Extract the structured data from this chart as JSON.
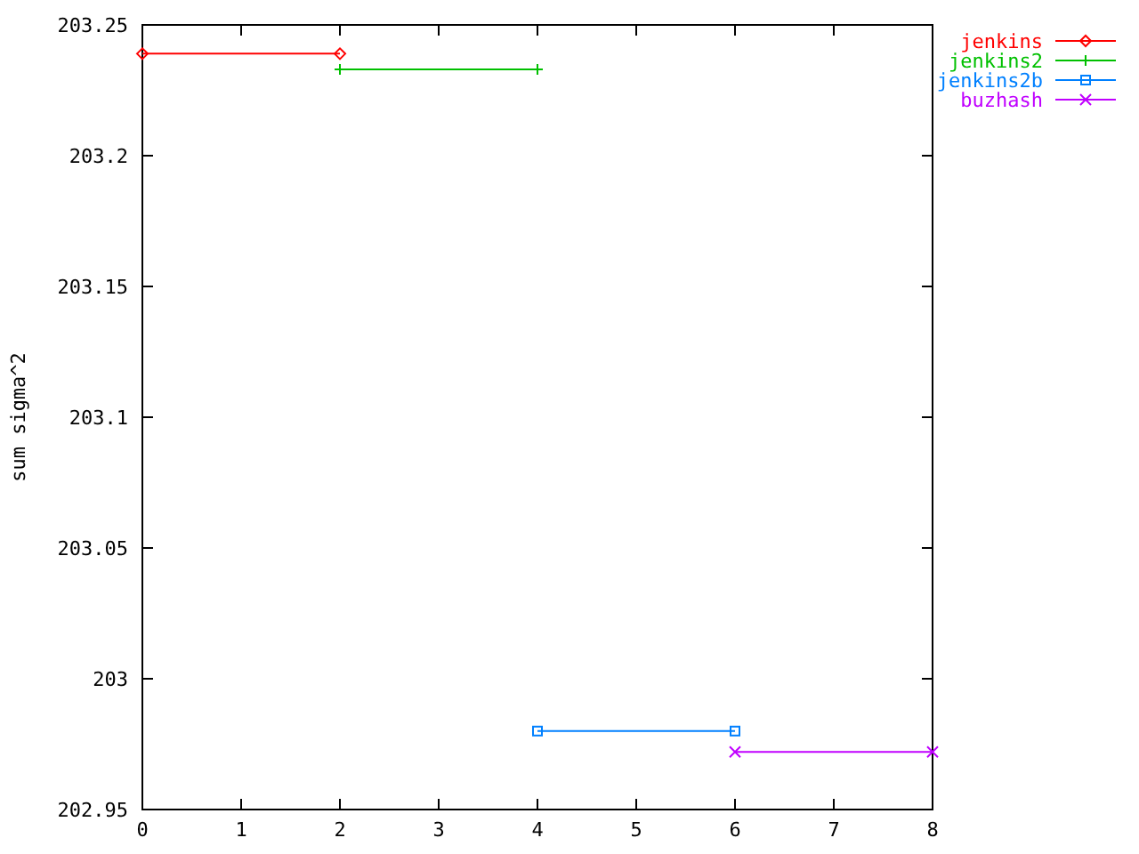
{
  "chart_data": {
    "type": "line",
    "ylabel": "sum sigma^2",
    "series": [
      {
        "name": "jenkins",
        "color": "#ff0000",
        "x": [
          0,
          2
        ],
        "values": [
          203.239,
          203.239
        ],
        "marker": "diamond"
      },
      {
        "name": "jenkins2",
        "color": "#00c000",
        "x": [
          2,
          4
        ],
        "values": [
          203.233,
          203.233
        ],
        "marker": "cross"
      },
      {
        "name": "jenkins2b",
        "color": "#0080ff",
        "x": [
          4,
          6
        ],
        "values": [
          202.98,
          202.98
        ],
        "marker": "square"
      },
      {
        "name": "buzhash",
        "color": "#c000ff",
        "x": [
          6,
          8
        ],
        "values": [
          202.972,
          202.972
        ],
        "marker": "x"
      }
    ],
    "xlim": [
      0,
      8
    ],
    "xticks": [
      0,
      1,
      2,
      3,
      4,
      5,
      6,
      7,
      8
    ],
    "ylim": [
      202.95,
      203.25
    ],
    "yticks": [
      202.95,
      203,
      203.05,
      203.1,
      203.15,
      203.2,
      203.25
    ],
    "grid": false,
    "legend": "top right",
    "line_style": "solid"
  }
}
